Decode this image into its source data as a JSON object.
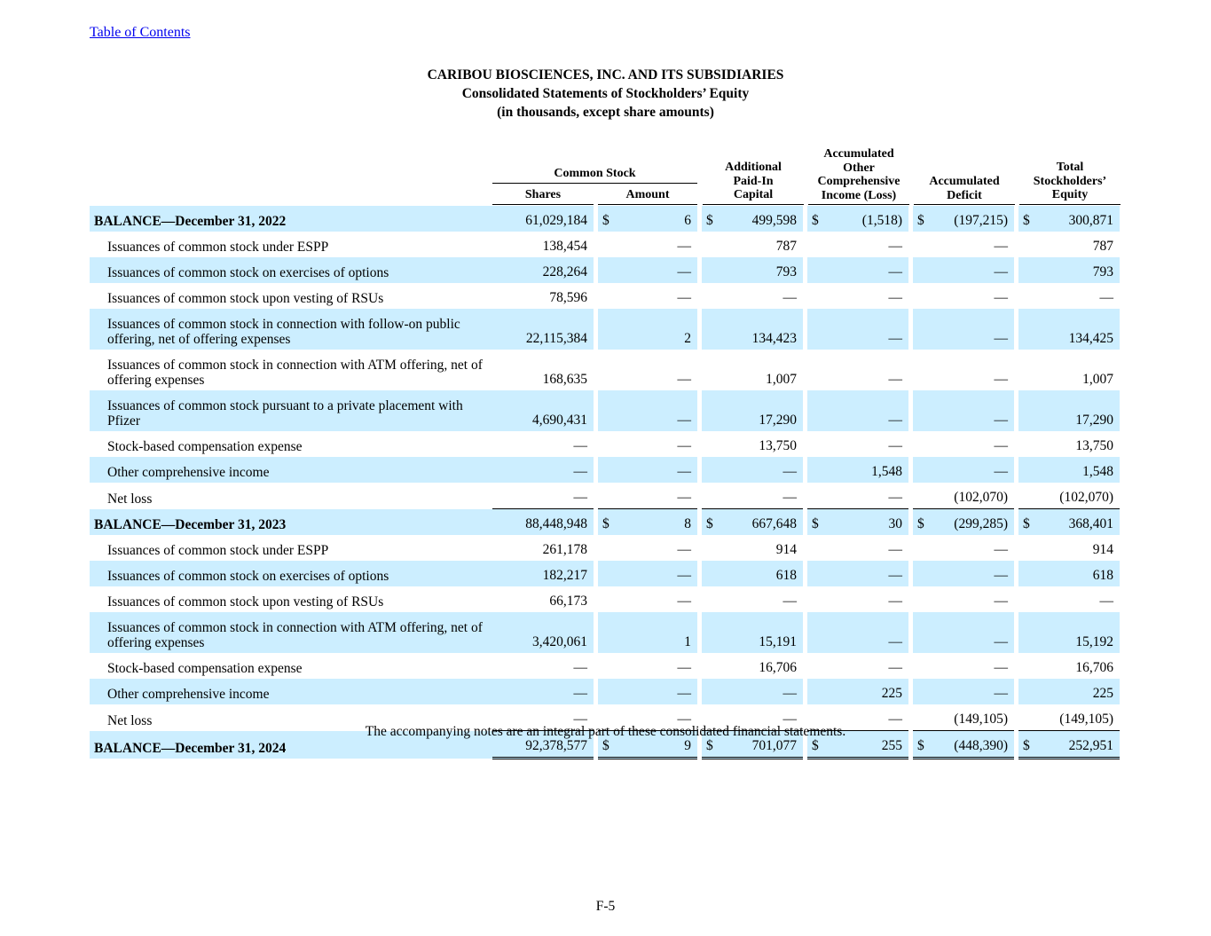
{
  "toc_link": "Table of Contents",
  "title": {
    "company": "CARIBOU BIOSCIENCES, INC. AND ITS SUBSIDIARIES",
    "statement": "Consolidated Statements of Stockholders’ Equity",
    "units": "(in thousands, except share amounts)"
  },
  "headers": {
    "common_stock": "Common Stock",
    "shares": "Shares",
    "amount": "Amount",
    "apic": [
      "Additional",
      "Paid-In",
      "Capital"
    ],
    "aoci": [
      "Accumulated",
      "Other",
      "Comprehensive",
      "Income (Loss)"
    ],
    "deficit": [
      "Accumulated",
      "Deficit"
    ],
    "total": [
      "Total",
      "Stockholders’",
      "Equity"
    ]
  },
  "rows": [
    {
      "label": "BALANCE—December 31, 2022",
      "type": "balance",
      "cells": [
        "61,029,184",
        "$",
        "6",
        "$",
        "499,598",
        "$",
        "(1,518)",
        "$",
        "(197,215)",
        "$",
        "300,871"
      ]
    },
    {
      "label": "Issuances of common stock under ESPP",
      "cells": [
        "138,454",
        "",
        "—",
        "",
        "787",
        "",
        "—",
        "",
        "—",
        "",
        "787"
      ]
    },
    {
      "label": "Issuances of common stock on exercises of options",
      "cells": [
        "228,264",
        "",
        "—",
        "",
        "793",
        "",
        "—",
        "",
        "—",
        "",
        "793"
      ]
    },
    {
      "label": "Issuances of common stock upon vesting of RSUs",
      "cells": [
        "78,596",
        "",
        "—",
        "",
        "—",
        "",
        "—",
        "",
        "—",
        "",
        "—"
      ]
    },
    {
      "label": "Issuances of common stock in connection with follow-on public offering, net of offering expenses",
      "tall": true,
      "cells": [
        "22,115,384",
        "",
        "2",
        "",
        "134,423",
        "",
        "—",
        "",
        "—",
        "",
        "134,425"
      ]
    },
    {
      "label": "Issuances of common stock in connection with ATM offering, net of offering expenses",
      "tall": true,
      "cells": [
        "168,635",
        "",
        "—",
        "",
        "1,007",
        "",
        "—",
        "",
        "—",
        "",
        "1,007"
      ]
    },
    {
      "label": "Issuances of common stock pursuant to a private placement with Pfizer",
      "tall": true,
      "cells": [
        "4,690,431",
        "",
        "—",
        "",
        "17,290",
        "",
        "—",
        "",
        "—",
        "",
        "17,290"
      ]
    },
    {
      "label": "Stock-based compensation expense",
      "cells": [
        "—",
        "",
        "—",
        "",
        "13,750",
        "",
        "—",
        "",
        "—",
        "",
        "13,750"
      ]
    },
    {
      "label": "Other comprehensive income",
      "cells": [
        "—",
        "",
        "—",
        "",
        "—",
        "",
        "1,548",
        "",
        "—",
        "",
        "1,548"
      ]
    },
    {
      "label": "Net loss",
      "cells": [
        "—",
        "",
        "—",
        "",
        "—",
        "",
        "—",
        "",
        "(102,070)",
        "",
        "(102,070)"
      ]
    },
    {
      "label": "BALANCE—December 31, 2023",
      "type": "balance",
      "cells": [
        "88,448,948",
        "$",
        "8",
        "$",
        "667,648",
        "$",
        "30",
        "$",
        "(299,285)",
        "$",
        "368,401"
      ]
    },
    {
      "label": "Issuances of common stock under ESPP",
      "cells": [
        "261,178",
        "",
        "—",
        "",
        "914",
        "",
        "—",
        "",
        "—",
        "",
        "914"
      ]
    },
    {
      "label": "Issuances of common stock on exercises of options",
      "cells": [
        "182,217",
        "",
        "—",
        "",
        "618",
        "",
        "—",
        "",
        "—",
        "",
        "618"
      ]
    },
    {
      "label": "Issuances of common stock upon vesting of RSUs",
      "cells": [
        "66,173",
        "",
        "—",
        "",
        "—",
        "",
        "—",
        "",
        "—",
        "",
        "—"
      ]
    },
    {
      "label": "Issuances of common stock in connection with ATM offering, net of offering expenses",
      "tall": true,
      "cells": [
        "3,420,061",
        "",
        "1",
        "",
        "15,191",
        "",
        "—",
        "",
        "—",
        "",
        "15,192"
      ]
    },
    {
      "label": "Stock-based compensation expense",
      "cells": [
        "—",
        "",
        "—",
        "",
        "16,706",
        "",
        "—",
        "",
        "—",
        "",
        "16,706"
      ]
    },
    {
      "label": "Other comprehensive income",
      "cells": [
        "—",
        "",
        "—",
        "",
        "—",
        "",
        "225",
        "",
        "—",
        "",
        "225"
      ]
    },
    {
      "label": "Net loss",
      "cells": [
        "—",
        "",
        "—",
        "",
        "—",
        "",
        "—",
        "",
        "(149,105)",
        "",
        "(149,105)"
      ]
    },
    {
      "label": "BALANCE—December 31, 2024",
      "type": "balance",
      "cells": [
        "92,378,577",
        "$",
        "9",
        "$",
        "701,077",
        "$",
        "255",
        "$",
        "(448,390)",
        "$",
        "252,951"
      ]
    }
  ],
  "footnote": "The accompanying notes are an integral part of these consolidated financial statements.",
  "page_number": "F-5"
}
